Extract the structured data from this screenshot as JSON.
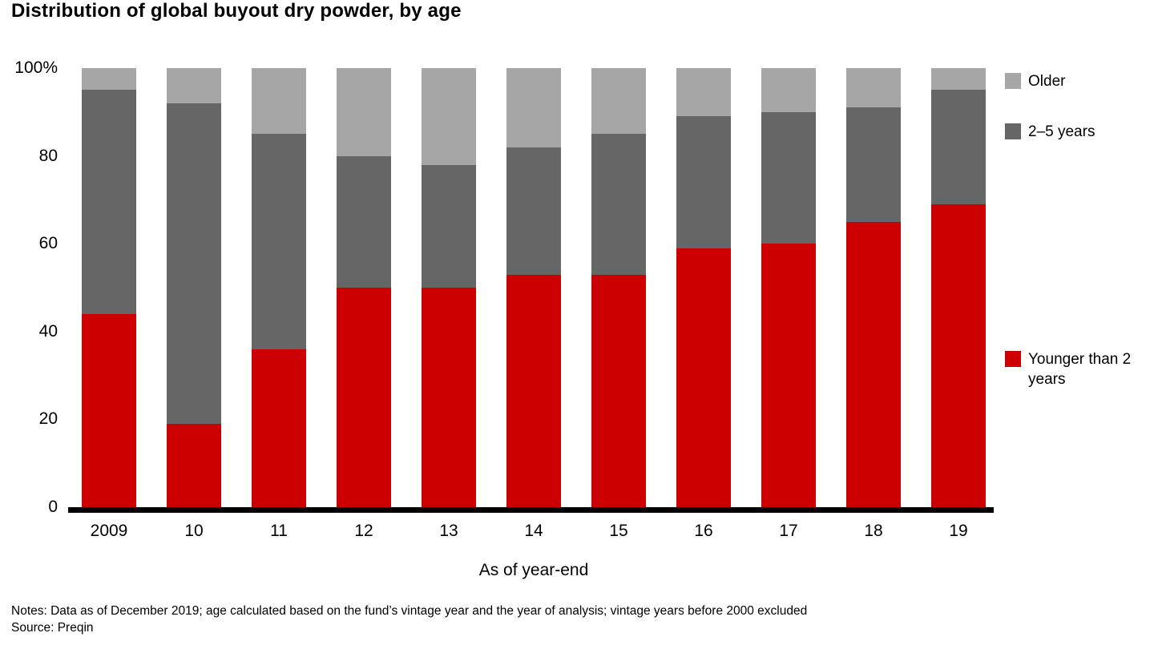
{
  "chart_data": {
    "type": "bar",
    "stacked": true,
    "title": "Distribution of global buyout dry powder, by age",
    "xlabel": "As of year-end",
    "ylabel": "",
    "ylim": [
      0,
      100
    ],
    "yticks": [
      0,
      20,
      40,
      60,
      80,
      100
    ],
    "ytick_top_label": "100%",
    "grid": false,
    "legend_position": "right",
    "categories": [
      "2009",
      "10",
      "11",
      "12",
      "13",
      "14",
      "15",
      "16",
      "17",
      "18",
      "19"
    ],
    "series": [
      {
        "name": "Younger than 2 years",
        "color": "#cc0000",
        "values": [
          44,
          19,
          36,
          50,
          50,
          53,
          53,
          59,
          60,
          65,
          69
        ]
      },
      {
        "name": "2–5 years",
        "color": "#666666",
        "values": [
          51,
          73,
          49,
          30,
          28,
          29,
          32,
          30,
          30,
          26,
          26
        ]
      },
      {
        "name": "Older",
        "color": "#a6a6a6",
        "values": [
          5,
          8,
          15,
          20,
          22,
          18,
          15,
          11,
          10,
          9,
          5
        ]
      }
    ]
  },
  "notes": "Notes: Data as of December 2019; age calculated based on the fund’s vintage year and the year of analysis; vintage years before 2000 excluded",
  "source": "Source: Preqin"
}
